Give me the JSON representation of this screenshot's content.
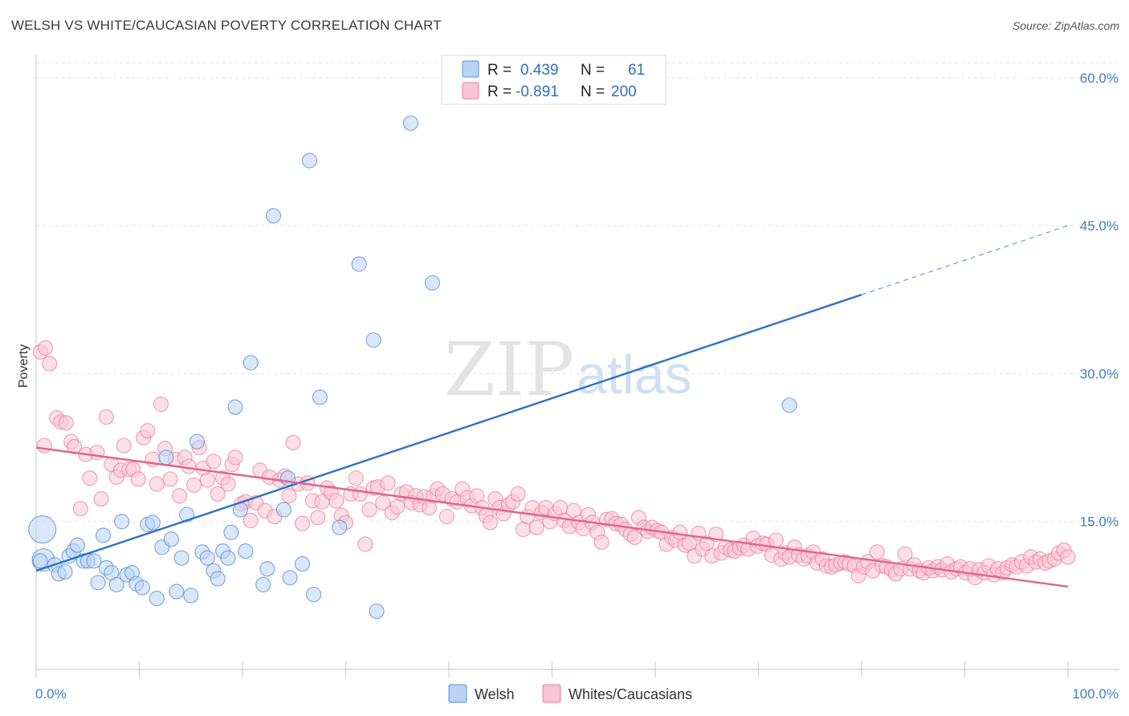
{
  "header": {
    "title": "WELSH VS WHITE/CAUCASIAN POVERTY CORRELATION CHART",
    "source": "Source: ZipAtlas.com"
  },
  "watermark": {
    "zip": "ZIP",
    "atlas": "atlas"
  },
  "legend": {
    "rows": [
      {
        "r_label": "R =",
        "r_value": "0.439",
        "n_label": "N =",
        "n_value": "61",
        "color": "#a9c8f0"
      },
      {
        "r_label": "R =",
        "r_value": "-0.891",
        "n_label": "N =",
        "n_value": "200",
        "color": "#f7b6c8"
      }
    ]
  },
  "bottom_legend": {
    "welsh": "Welsh",
    "whites": "Whites/Caucasians"
  },
  "chart_data": {
    "type": "scatter",
    "title": "WELSH VS WHITE/CAUCASIAN POVERTY CORRELATION CHART",
    "xlabel": "",
    "ylabel": "Poverty",
    "xlim": [
      0,
      100
    ],
    "ylim": [
      0,
      63
    ],
    "x_tick_labels": [
      "0.0%",
      "100.0%"
    ],
    "y_ticks": [
      15,
      30,
      45,
      60
    ],
    "y_tick_labels": [
      "15.0%",
      "30.0%",
      "45.0%",
      "60.0%"
    ],
    "grid": true,
    "legend_position": "top-center",
    "colors": {
      "welsh": "#5b8fd6",
      "welsh_fill": "#b9d3f3",
      "whites": "#ea7da0",
      "whites_fill": "#f9c4d3",
      "welsh_line": "#2a6fcb",
      "whites_line": "#e0648e"
    },
    "series": [
      {
        "name": "Welsh",
        "R": 0.439,
        "N": 61,
        "trend": {
          "x": [
            0,
            80
          ],
          "y": [
            10.0,
            38.0
          ],
          "dashed_to": [
            100,
            45.0
          ]
        },
        "points": [
          [
            0.6,
            14.2
          ],
          [
            0.7,
            11.1
          ],
          [
            1.8,
            10.6
          ],
          [
            2.2,
            9.7
          ],
          [
            2.8,
            9.9
          ],
          [
            3.2,
            11.5
          ],
          [
            3.6,
            12.0
          ],
          [
            4.0,
            12.6
          ],
          [
            4.6,
            11.0
          ],
          [
            5.0,
            11.0
          ],
          [
            5.6,
            11.0
          ],
          [
            6.0,
            8.8
          ],
          [
            6.5,
            13.6
          ],
          [
            6.8,
            10.3
          ],
          [
            7.3,
            9.8
          ],
          [
            7.8,
            8.6
          ],
          [
            8.3,
            15.0
          ],
          [
            8.8,
            9.6
          ],
          [
            9.3,
            9.8
          ],
          [
            9.7,
            8.7
          ],
          [
            10.3,
            8.3
          ],
          [
            10.8,
            14.7
          ],
          [
            11.3,
            14.9
          ],
          [
            11.7,
            7.2
          ],
          [
            12.2,
            12.4
          ],
          [
            12.6,
            21.5
          ],
          [
            13.1,
            13.2
          ],
          [
            13.6,
            7.9
          ],
          [
            14.1,
            11.3
          ],
          [
            14.6,
            15.7
          ],
          [
            15.0,
            7.5
          ],
          [
            15.6,
            23.1
          ],
          [
            16.1,
            11.9
          ],
          [
            16.6,
            11.3
          ],
          [
            17.2,
            10.0
          ],
          [
            17.6,
            9.2
          ],
          [
            18.1,
            12.0
          ],
          [
            18.6,
            11.3
          ],
          [
            18.9,
            13.9
          ],
          [
            19.3,
            26.6
          ],
          [
            19.8,
            16.2
          ],
          [
            20.3,
            12.0
          ],
          [
            20.8,
            31.1
          ],
          [
            22.0,
            8.6
          ],
          [
            22.4,
            10.2
          ],
          [
            23.0,
            46.0
          ],
          [
            24.0,
            16.2
          ],
          [
            24.6,
            9.3
          ],
          [
            24.4,
            19.4
          ],
          [
            25.8,
            10.7
          ],
          [
            26.5,
            51.6
          ],
          [
            26.9,
            7.6
          ],
          [
            27.5,
            27.6
          ],
          [
            29.4,
            14.4
          ],
          [
            31.3,
            41.1
          ],
          [
            33.0,
            5.9
          ],
          [
            32.7,
            33.4
          ],
          [
            36.3,
            55.4
          ],
          [
            38.4,
            39.2
          ],
          [
            73.0,
            26.8
          ],
          [
            0.4,
            11.0
          ]
        ]
      },
      {
        "name": "Whites/Caucasians",
        "R": -0.891,
        "N": 200,
        "trend": {
          "x": [
            0,
            100
          ],
          "y": [
            22.5,
            8.4
          ]
        },
        "points": [
          [
            0.4,
            32.2
          ],
          [
            0.9,
            32.6
          ],
          [
            1.3,
            31.0
          ],
          [
            2.0,
            25.5
          ],
          [
            2.4,
            25.1
          ],
          [
            2.9,
            25.0
          ],
          [
            3.4,
            23.1
          ],
          [
            3.7,
            22.6
          ],
          [
            4.3,
            16.3
          ],
          [
            4.8,
            21.8
          ],
          [
            5.2,
            19.4
          ],
          [
            5.9,
            22.0
          ],
          [
            6.3,
            17.3
          ],
          [
            6.8,
            25.6
          ],
          [
            7.3,
            20.8
          ],
          [
            7.8,
            19.5
          ],
          [
            8.2,
            20.2
          ],
          [
            8.5,
            22.7
          ],
          [
            9.0,
            20.3
          ],
          [
            9.4,
            20.3
          ],
          [
            9.9,
            19.3
          ],
          [
            10.4,
            23.5
          ],
          [
            10.8,
            24.2
          ],
          [
            11.3,
            21.3
          ],
          [
            11.7,
            18.8
          ],
          [
            12.1,
            26.9
          ],
          [
            12.5,
            22.4
          ],
          [
            13.0,
            19.3
          ],
          [
            13.5,
            21.3
          ],
          [
            13.9,
            17.6
          ],
          [
            14.4,
            21.5
          ],
          [
            14.8,
            20.6
          ],
          [
            15.3,
            18.7
          ],
          [
            15.8,
            22.5
          ],
          [
            16.2,
            20.4
          ],
          [
            16.6,
            19.2
          ],
          [
            17.2,
            21.1
          ],
          [
            17.6,
            17.8
          ],
          [
            18.1,
            19.4
          ],
          [
            18.6,
            18.8
          ],
          [
            19.0,
            20.8
          ],
          [
            19.3,
            21.5
          ],
          [
            19.9,
            16.8
          ],
          [
            20.3,
            17.0
          ],
          [
            20.8,
            15.1
          ],
          [
            21.3,
            16.9
          ],
          [
            21.7,
            20.2
          ],
          [
            22.2,
            16.1
          ],
          [
            22.6,
            19.5
          ],
          [
            23.1,
            15.5
          ],
          [
            23.6,
            19.2
          ],
          [
            24.1,
            19.6
          ],
          [
            24.5,
            17.6
          ],
          [
            24.9,
            23.0
          ],
          [
            25.4,
            18.8
          ],
          [
            25.8,
            14.8
          ],
          [
            26.3,
            18.9
          ],
          [
            26.8,
            17.1
          ],
          [
            27.3,
            15.4
          ],
          [
            27.7,
            17.0
          ],
          [
            28.2,
            18.4
          ],
          [
            28.6,
            17.9
          ],
          [
            29.1,
            17.1
          ],
          [
            29.6,
            15.6
          ],
          [
            30.0,
            14.9
          ],
          [
            30.5,
            17.8
          ],
          [
            31.0,
            19.4
          ],
          [
            31.4,
            17.8
          ],
          [
            31.9,
            12.7
          ],
          [
            32.3,
            16.2
          ],
          [
            32.7,
            18.4
          ],
          [
            33.1,
            18.5
          ],
          [
            33.6,
            16.9
          ],
          [
            34.1,
            18.9
          ],
          [
            34.5,
            15.9
          ],
          [
            35.0,
            16.5
          ],
          [
            35.4,
            17.8
          ],
          [
            35.9,
            18.0
          ],
          [
            36.4,
            16.9
          ],
          [
            36.8,
            17.6
          ],
          [
            37.2,
            16.7
          ],
          [
            37.6,
            17.5
          ],
          [
            38.1,
            16.4
          ],
          [
            38.5,
            17.6
          ],
          [
            38.9,
            18.3
          ],
          [
            39.4,
            17.8
          ],
          [
            39.8,
            15.5
          ],
          [
            40.3,
            17.3
          ],
          [
            40.8,
            17.0
          ],
          [
            41.3,
            18.3
          ],
          [
            41.8,
            17.4
          ],
          [
            42.2,
            16.6
          ],
          [
            42.7,
            17.6
          ],
          [
            43.2,
            16.4
          ],
          [
            43.6,
            15.6
          ],
          [
            44.0,
            14.9
          ],
          [
            44.5,
            17.3
          ],
          [
            44.9,
            16.4
          ],
          [
            45.3,
            15.8
          ],
          [
            45.8,
            16.7
          ],
          [
            46.2,
            17.0
          ],
          [
            46.7,
            17.8
          ],
          [
            47.2,
            14.2
          ],
          [
            47.6,
            15.5
          ],
          [
            48.1,
            16.4
          ],
          [
            48.5,
            14.4
          ],
          [
            49.0,
            15.9
          ],
          [
            49.4,
            16.4
          ],
          [
            49.8,
            15.0
          ],
          [
            50.3,
            15.8
          ],
          [
            50.8,
            16.4
          ],
          [
            51.2,
            15.1
          ],
          [
            51.7,
            14.5
          ],
          [
            52.1,
            16.1
          ],
          [
            52.6,
            14.9
          ],
          [
            53.0,
            14.3
          ],
          [
            53.5,
            15.7
          ],
          [
            53.9,
            14.9
          ],
          [
            54.4,
            13.9
          ],
          [
            54.8,
            12.9
          ],
          [
            55.3,
            15.2
          ],
          [
            55.8,
            15.3
          ],
          [
            56.2,
            14.8
          ],
          [
            56.7,
            14.7
          ],
          [
            57.1,
            14.2
          ],
          [
            57.6,
            13.7
          ],
          [
            58.0,
            13.4
          ],
          [
            58.4,
            15.4
          ],
          [
            58.9,
            14.4
          ],
          [
            59.3,
            14.0
          ],
          [
            59.7,
            14.4
          ],
          [
            60.2,
            14.1
          ],
          [
            60.6,
            13.9
          ],
          [
            61.1,
            12.7
          ],
          [
            61.6,
            13.4
          ],
          [
            62.0,
            13.1
          ],
          [
            62.4,
            13.9
          ],
          [
            62.9,
            12.6
          ],
          [
            63.3,
            12.8
          ],
          [
            63.8,
            11.5
          ],
          [
            64.2,
            13.8
          ],
          [
            64.6,
            12.2
          ],
          [
            65.0,
            12.8
          ],
          [
            65.5,
            11.5
          ],
          [
            65.9,
            13.7
          ],
          [
            66.4,
            11.8
          ],
          [
            66.8,
            12.4
          ],
          [
            67.3,
            12.1
          ],
          [
            67.7,
            12.0
          ],
          [
            68.2,
            12.3
          ],
          [
            68.6,
            12.6
          ],
          [
            69.0,
            12.2
          ],
          [
            69.5,
            13.3
          ],
          [
            69.9,
            12.5
          ],
          [
            70.4,
            12.8
          ],
          [
            70.8,
            12.7
          ],
          [
            71.3,
            11.6
          ],
          [
            71.7,
            13.1
          ],
          [
            72.2,
            11.2
          ],
          [
            72.6,
            11.8
          ],
          [
            73.0,
            11.4
          ],
          [
            73.5,
            12.4
          ],
          [
            73.9,
            11.6
          ],
          [
            74.4,
            11.2
          ],
          [
            74.8,
            11.5
          ],
          [
            75.3,
            11.9
          ],
          [
            75.7,
            10.8
          ],
          [
            76.2,
            11.2
          ],
          [
            76.6,
            10.5
          ],
          [
            77.1,
            10.4
          ],
          [
            77.5,
            10.6
          ],
          [
            78.0,
            10.8
          ],
          [
            78.4,
            10.9
          ],
          [
            78.8,
            10.7
          ],
          [
            79.3,
            10.5
          ],
          [
            79.7,
            9.5
          ],
          [
            80.2,
            10.4
          ],
          [
            80.6,
            10.9
          ],
          [
            81.1,
            10.0
          ],
          [
            81.5,
            11.9
          ],
          [
            82.0,
            10.5
          ],
          [
            82.4,
            10.4
          ],
          [
            82.9,
            10.1
          ],
          [
            83.3,
            9.7
          ],
          [
            83.8,
            10.2
          ],
          [
            84.2,
            11.7
          ],
          [
            84.7,
            10.2
          ],
          [
            85.1,
            10.6
          ],
          [
            85.6,
            10.0
          ],
          [
            86.0,
            9.8
          ],
          [
            86.5,
            10.3
          ],
          [
            86.9,
            10.0
          ],
          [
            87.4,
            10.4
          ],
          [
            87.8,
            10.1
          ],
          [
            88.3,
            10.7
          ],
          [
            88.7,
            9.9
          ],
          [
            89.2,
            10.2
          ],
          [
            89.6,
            10.4
          ],
          [
            90.1,
            9.8
          ],
          [
            90.5,
            10.2
          ],
          [
            91.0,
            9.3
          ],
          [
            91.4,
            10.1
          ],
          [
            91.9,
            9.8
          ],
          [
            92.3,
            10.5
          ],
          [
            92.8,
            9.6
          ],
          [
            93.2,
            10.2
          ],
          [
            93.7,
            9.8
          ],
          [
            94.1,
            10.3
          ],
          [
            94.6,
            10.6
          ],
          [
            95.0,
            10.4
          ],
          [
            95.5,
            10.9
          ],
          [
            96.0,
            10.5
          ],
          [
            96.4,
            11.4
          ],
          [
            96.9,
            10.9
          ],
          [
            97.3,
            11.2
          ],
          [
            97.8,
            10.8
          ],
          [
            98.2,
            11.0
          ],
          [
            98.7,
            11.2
          ],
          [
            99.1,
            11.8
          ],
          [
            99.6,
            12.1
          ],
          [
            100.0,
            11.4
          ],
          [
            0.8,
            22.7
          ]
        ]
      }
    ]
  }
}
